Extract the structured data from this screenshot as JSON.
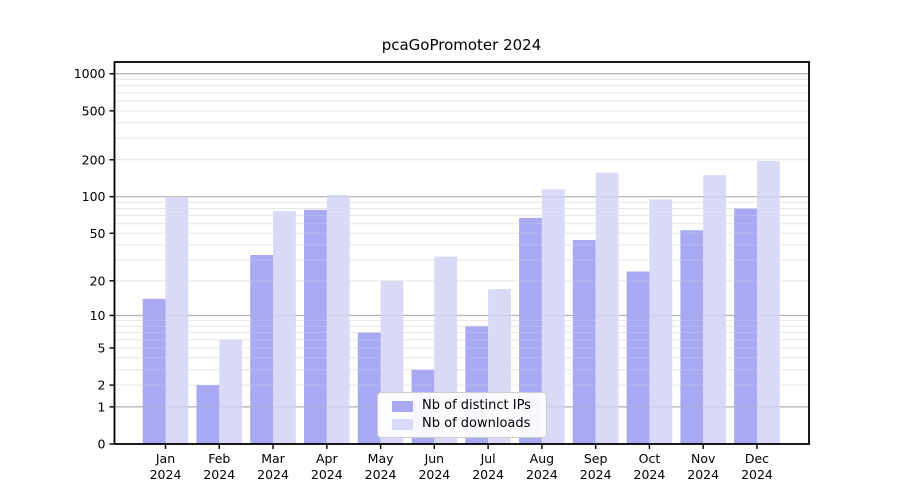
{
  "chart_data": {
    "type": "bar",
    "title": "pcaGoPromoter 2024",
    "xlabel": "",
    "ylabel": "",
    "x_year": "2024",
    "categories": [
      "Jan",
      "Feb",
      "Mar",
      "Apr",
      "May",
      "Jun",
      "Jul",
      "Aug",
      "Sep",
      "Oct",
      "Nov",
      "Dec"
    ],
    "series": [
      {
        "name": "Nb of distinct IPs",
        "color": "#a8a8f3",
        "values": [
          14,
          2,
          33,
          78,
          7,
          3,
          8,
          67,
          44,
          24,
          53,
          80
        ]
      },
      {
        "name": "Nb of downloads",
        "color": "#d9d9f8",
        "values": [
          100,
          6,
          76,
          103,
          20,
          32,
          17,
          115,
          157,
          95,
          150,
          195
        ]
      }
    ],
    "scale": "log1p",
    "ylim": [
      0,
      1250
    ],
    "yticks": [
      0,
      1,
      2,
      5,
      10,
      20,
      50,
      100,
      200,
      500,
      1000
    ],
    "major_gridlines": [
      1,
      10,
      100,
      1000
    ],
    "grid": true,
    "legend_position": "lower center"
  },
  "colors": {
    "major_grid": "#b2b2b2",
    "minor_grid": "#e7e7e7",
    "axis": "#000000",
    "background": "#ffffff"
  }
}
